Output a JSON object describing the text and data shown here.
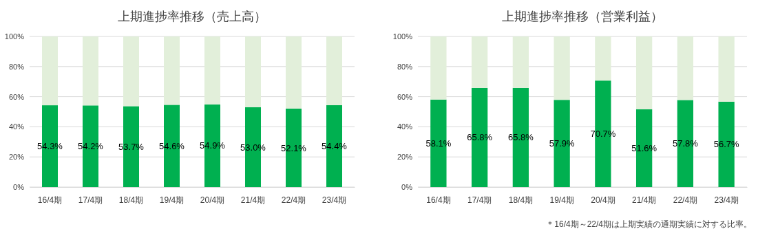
{
  "chart_data": [
    {
      "type": "bar",
      "title": "上期進捗率推移（売上高）",
      "stacked": true,
      "categories": [
        "16/4期",
        "17/4期",
        "18/4期",
        "19/4期",
        "20/4期",
        "21/4期",
        "22/4期",
        "23/4期"
      ],
      "series": [
        {
          "color": "#00b050",
          "values": [
            54.3,
            54.2,
            53.7,
            54.6,
            54.9,
            53.0,
            52.1,
            54.4
          ],
          "value_labels": [
            "54.3%",
            "54.2%",
            "53.7%",
            "54.6%",
            "54.9%",
            "53.0%",
            "52.1%",
            "54.4%"
          ]
        },
        {
          "color": "#e2efda",
          "values": [
            45.7,
            45.8,
            46.3,
            45.4,
            45.1,
            47.0,
            47.9,
            45.6
          ]
        }
      ],
      "ylim": [
        0,
        100
      ],
      "yticks": [
        {
          "value": 0,
          "label": "0%"
        },
        {
          "value": 20,
          "label": "20%"
        },
        {
          "value": 40,
          "label": "40%"
        },
        {
          "value": 60,
          "label": "60%"
        },
        {
          "value": 80,
          "label": "80%"
        },
        {
          "value": 100,
          "label": "100%"
        }
      ],
      "grid": "y"
    },
    {
      "type": "bar",
      "title": "上期進捗率推移（営業利益）",
      "stacked": true,
      "categories": [
        "16/4期",
        "17/4期",
        "18/4期",
        "19/4期",
        "20/4期",
        "21/4期",
        "22/4期",
        "23/4期"
      ],
      "series": [
        {
          "color": "#00b050",
          "values": [
            58.1,
            65.8,
            65.8,
            57.9,
            70.7,
            51.6,
            57.8,
            56.7
          ],
          "value_labels": [
            "58.1%",
            "65.8%",
            "65.8%",
            "57.9%",
            "70.7%",
            "51.6%",
            "57.8%",
            "56.7%"
          ]
        },
        {
          "color": "#e2efda",
          "values": [
            41.9,
            34.2,
            34.2,
            42.1,
            29.3,
            48.4,
            42.2,
            43.3
          ]
        }
      ],
      "ylim": [
        0,
        100
      ],
      "yticks": [
        {
          "value": 0,
          "label": "0%"
        },
        {
          "value": 20,
          "label": "20%"
        },
        {
          "value": 40,
          "label": "40%"
        },
        {
          "value": 60,
          "label": "60%"
        },
        {
          "value": 80,
          "label": "80%"
        },
        {
          "value": 100,
          "label": "100%"
        }
      ],
      "grid": "y",
      "annotations": [
        "＊16/4期～22/4期は上期実績の通期実績に対する比率。"
      ]
    }
  ]
}
